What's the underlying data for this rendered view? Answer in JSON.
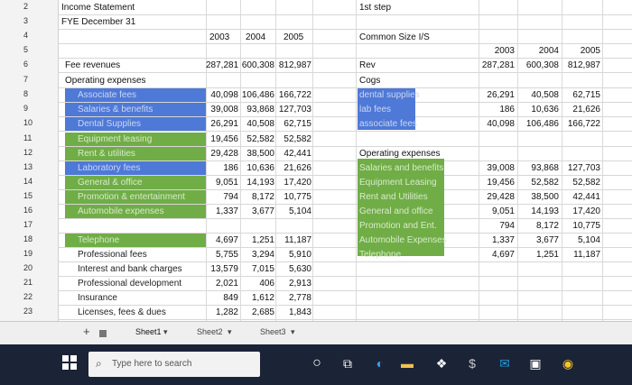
{
  "header": {
    "title": "Income Statement",
    "subtitle": "FYE December 31",
    "step": "1st step",
    "years": [
      "2003",
      "2004",
      "2005"
    ],
    "common_size": "Common Size I/S"
  },
  "rows_numbers": [
    "2",
    "3",
    "4",
    "5",
    "6",
    "7",
    "8",
    "9",
    "10",
    "11",
    "12",
    "13",
    "14",
    "15",
    "16",
    "17",
    "18",
    "19",
    "20",
    "21",
    "22",
    "23"
  ],
  "left_table": {
    "revenue": {
      "label": "Fee revenues",
      "values": [
        "287,281",
        "600,308",
        "812,987"
      ]
    },
    "opex_label": "Operating expenses",
    "items": [
      {
        "label": "Associate fees",
        "values": [
          "40,098",
          "106,486",
          "166,722"
        ],
        "color": "blue"
      },
      {
        "label": "Salaries & benefits",
        "values": [
          "39,008",
          "93,868",
          "127,703"
        ],
        "color": "blue"
      },
      {
        "label": "Dental Supplies",
        "values": [
          "26,291",
          "40,508",
          "62,715"
        ],
        "color": "blue"
      },
      {
        "label": "Equipment leasing",
        "values": [
          "19,456",
          "52,582",
          "52,582"
        ],
        "color": "green"
      },
      {
        "label": "Rent & utilities",
        "values": [
          "29,428",
          "38,500",
          "42,441"
        ],
        "color": "green"
      },
      {
        "label": "Laboratory fees",
        "values": [
          "186",
          "10,636",
          "21,626"
        ],
        "color": "blue"
      },
      {
        "label": "General & office",
        "values": [
          "9,051",
          "14,193",
          "17,420"
        ],
        "color": "green"
      },
      {
        "label": "Promotion & entertainment",
        "values": [
          "794",
          "8,172",
          "10,775"
        ],
        "color": "green"
      },
      {
        "label": "Automobile expenses",
        "values": [
          "1,337",
          "3,677",
          "5,104"
        ],
        "color": "green"
      },
      {
        "label": "Telephone",
        "values": [
          "4,697",
          "1,251",
          "11,187"
        ],
        "color": "green"
      },
      {
        "label": "Professional fees",
        "values": [
          "5,755",
          "3,294",
          "5,910"
        ],
        "color": ""
      },
      {
        "label": "Interest and bank charges",
        "values": [
          "13,579",
          "7,015",
          "5,630"
        ],
        "color": ""
      },
      {
        "label": "Professional development",
        "values": [
          "2,021",
          "406",
          "2,913"
        ],
        "color": ""
      },
      {
        "label": "Insurance",
        "values": [
          "849",
          "1,612",
          "2,778"
        ],
        "color": ""
      },
      {
        "label": "Licenses, fees & dues",
        "values": [
          "1,282",
          "2,685",
          "1,843"
        ],
        "color": ""
      }
    ]
  },
  "right_table": {
    "years": [
      "2003",
      "2004",
      "2005"
    ],
    "rev": {
      "label": "Rev",
      "values": [
        "287,281",
        "600,308",
        "812,987"
      ]
    },
    "cogs_label": "Cogs",
    "cogs_items": [
      {
        "label": "dental supplies",
        "values": [
          "26,291",
          "40,508",
          "62,715"
        ]
      },
      {
        "label": "lab fees",
        "values": [
          "186",
          "10,636",
          "21,626"
        ]
      },
      {
        "label": "associate fees",
        "values": [
          "40,098",
          "106,486",
          "166,722"
        ]
      }
    ],
    "opex_label": "Operating expenses",
    "opex_items": [
      {
        "label": "Salaries and benefits",
        "values": [
          "39,008",
          "93,868",
          "127,703"
        ]
      },
      {
        "label": "Equipment Leasing",
        "values": [
          "19,456",
          "52,582",
          "52,582"
        ]
      },
      {
        "label": "Rent and Utilities",
        "values": [
          "29,428",
          "38,500",
          "42,441"
        ]
      },
      {
        "label": "General and office",
        "values": [
          "9,051",
          "14,193",
          "17,420"
        ]
      },
      {
        "label": "Promotion and Ent.",
        "values": [
          "794",
          "8,172",
          "10,775"
        ]
      },
      {
        "label": "Automobile Expenses",
        "values": [
          "1,337",
          "3,677",
          "5,104"
        ]
      },
      {
        "label": "Telephone",
        "values": [
          "4,697",
          "1,251",
          "11,187"
        ]
      }
    ]
  },
  "tabs": {
    "add": "+",
    "sheet1": "Sheet1",
    "sheet2": "Sheet2",
    "sheet3": "Sheet3"
  },
  "taskbar": {
    "search_placeholder": "Type here to search"
  },
  "colors": {
    "blue": "#4f79d6",
    "green": "#71ad47"
  }
}
